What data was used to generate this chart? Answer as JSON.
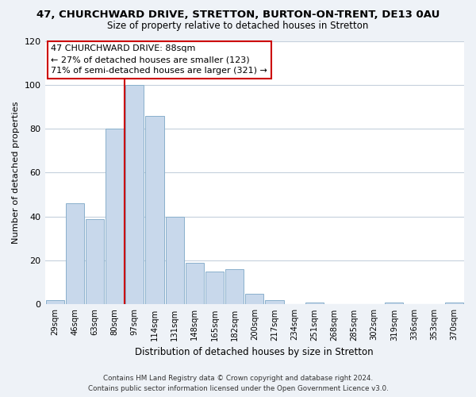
{
  "title": "47, CHURCHWARD DRIVE, STRETTON, BURTON-ON-TRENT, DE13 0AU",
  "subtitle": "Size of property relative to detached houses in Stretton",
  "xlabel": "Distribution of detached houses by size in Stretton",
  "ylabel": "Number of detached properties",
  "bin_labels": [
    "29sqm",
    "46sqm",
    "63sqm",
    "80sqm",
    "97sqm",
    "114sqm",
    "131sqm",
    "148sqm",
    "165sqm",
    "182sqm",
    "200sqm",
    "217sqm",
    "234sqm",
    "251sqm",
    "268sqm",
    "285sqm",
    "302sqm",
    "319sqm",
    "336sqm",
    "353sqm",
    "370sqm"
  ],
  "bar_heights": [
    2,
    46,
    39,
    80,
    100,
    86,
    40,
    19,
    15,
    16,
    5,
    2,
    0,
    1,
    0,
    0,
    0,
    1,
    0,
    0,
    1
  ],
  "bar_color": "#c8d8eb",
  "bar_edge_color": "#8ab0cc",
  "vline_pos": 3.5,
  "vline_color": "#cc0000",
  "ylim": [
    0,
    120
  ],
  "yticks": [
    0,
    20,
    40,
    60,
    80,
    100,
    120
  ],
  "annotation_title": "47 CHURCHWARD DRIVE: 88sqm",
  "annotation_line1": "← 27% of detached houses are smaller (123)",
  "annotation_line2": "71% of semi-detached houses are larger (321) →",
  "footer_line1": "Contains HM Land Registry data © Crown copyright and database right 2024.",
  "footer_line2": "Contains public sector information licensed under the Open Government Licence v3.0.",
  "background_color": "#eef2f7",
  "plot_bg_color": "#ffffff",
  "grid_color": "#c5d0dc"
}
